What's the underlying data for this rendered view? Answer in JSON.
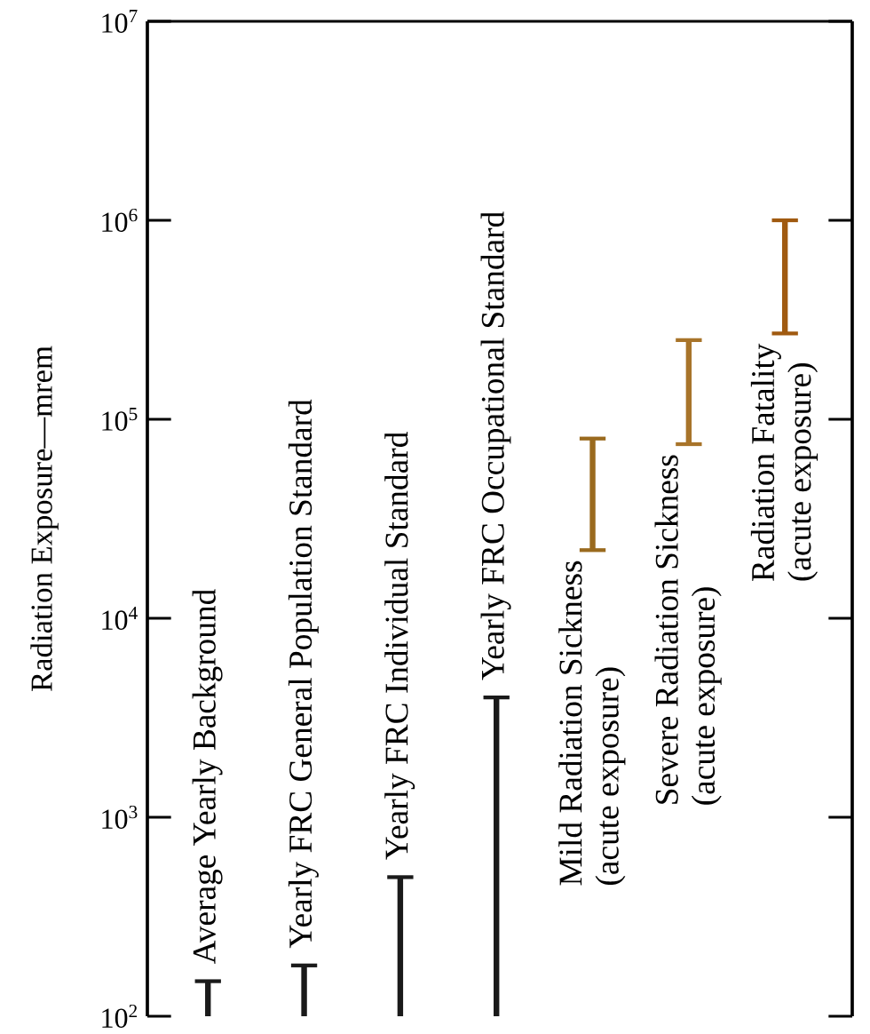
{
  "chart_data": {
    "type": "bar",
    "ylabel": "Radiation Exposure—mrem",
    "categories": [
      "Average Yearly Background",
      "Yearly FRC General Population Standard",
      "Yearly FRC Individual Standard",
      "Yearly FRC Occupational Standard",
      "Mild Radiation Sickness",
      "Severe Radiation Sickness",
      "Radiation Fatality"
    ],
    "base": [
      100,
      100,
      100,
      100,
      22000,
      75000,
      270000
    ],
    "values": [
      50,
      80,
      400,
      3900,
      58000,
      175000,
      730000
    ],
    "colors": [
      "#1a1a1a",
      "#1a1a1a",
      "#1a1a1a",
      "#1a1a1a",
      "#9a6a1e",
      "#a8742a",
      "#a05a10"
    ],
    "log": "y",
    "ylim": [
      100,
      10000000
    ],
    "yticks": [
      {
        "value": 100,
        "label": "10$^{2}$"
      },
      {
        "value": 1000,
        "label": "10$^{3}$"
      },
      {
        "value": 10000,
        "label": "10$^{4}$"
      },
      {
        "value": 100000,
        "label": "10$^{5}$"
      },
      {
        "value": 1000000,
        "label": "10$^{6}$"
      },
      {
        "value": 10000000,
        "label": "10$^{7}$"
      }
    ],
    "tick_labels": "y",
    "annotations": [
      "(acute exposure)",
      "(acute exposure)",
      "(acute exposure)"
    ]
  }
}
